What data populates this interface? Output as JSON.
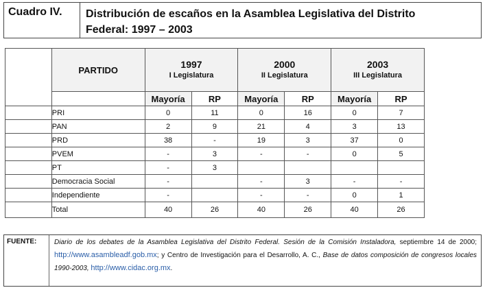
{
  "title": {
    "label": "Cuadro IV.",
    "line1": "Distribución de escaños en la Asamblea Legislativa del Distrito",
    "line2": "Federal: 1997 – 2003"
  },
  "table": {
    "partido_header": "PARTIDO",
    "years": [
      {
        "year": "1997",
        "legislature": "I Legislatura"
      },
      {
        "year": "2000",
        "legislature": "II Legislatura"
      },
      {
        "year": "2003",
        "legislature": "III Legislatura"
      }
    ],
    "sub_headers": {
      "mayoria": "Mayoría",
      "rp": "RP"
    },
    "rows": [
      {
        "party": "PRI",
        "v": [
          "0",
          "11",
          "0",
          "16",
          "0",
          "7"
        ]
      },
      {
        "party": "PAN",
        "v": [
          "2",
          "9",
          "21",
          "4",
          "3",
          "13"
        ]
      },
      {
        "party": "PRD",
        "v": [
          "38",
          "-",
          "19",
          "3",
          "37",
          "0"
        ]
      },
      {
        "party": "PVEM",
        "v": [
          "-",
          "3",
          "-",
          "-",
          "0",
          "5"
        ]
      },
      {
        "party": "PT",
        "v": [
          "-",
          "3",
          "",
          "",
          "",
          ""
        ]
      },
      {
        "party": "Democracia Social",
        "v": [
          "-",
          "",
          "-",
          "3",
          "-",
          "-"
        ]
      },
      {
        "party": "Independiente",
        "v": [
          "-",
          "",
          "-",
          "-",
          "0",
          "1"
        ]
      }
    ],
    "total": {
      "party": "Total",
      "v": [
        "40",
        "26",
        "40",
        "26",
        "40",
        "26"
      ]
    }
  },
  "source": {
    "label": "FUENTE:",
    "part1": "Diario de los debates de la Asamblea Legislativa del Distrito Federal. Sesión de la Comisión Instaladora,",
    "part2": " septiembre 14 de 2000; ",
    "link1": "http://www.asambleadf.gob.mx",
    "part3": "; y Centro de Investigación para el Desarrollo, A. C., ",
    "part4": "Base de datos composición de congresos locales 1990-2003,",
    "link2": "http://www.cidac.org.mx",
    "part5": "."
  },
  "colors": {
    "link": "#2a5ea8",
    "header_bg": "#f2f2f2"
  }
}
